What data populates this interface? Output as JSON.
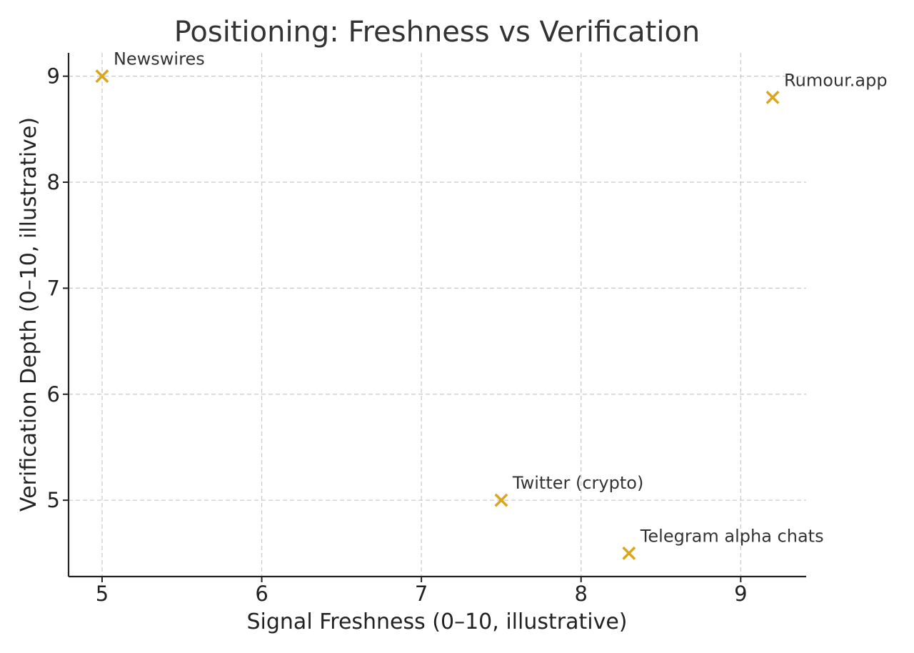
{
  "chart_data": {
    "type": "scatter",
    "title": "Positioning: Freshness vs Verification",
    "xlabel": "Signal Freshness (0–10, illustrative)",
    "ylabel": "Verification Depth (0–10, illustrative)",
    "xlim": [
      4.79,
      9.41
    ],
    "ylim": [
      4.28,
      9.22
    ],
    "xticks": [
      5,
      6,
      7,
      8,
      9
    ],
    "yticks": [
      5,
      6,
      7,
      8,
      9
    ],
    "grid": true,
    "marker": "x",
    "marker_color": "#DAA520",
    "points": [
      {
        "label": "Newswires",
        "x": 5.0,
        "y": 9.0
      },
      {
        "label": "Rumour.app",
        "x": 9.2,
        "y": 8.8
      },
      {
        "label": "Twitter (crypto)",
        "x": 7.5,
        "y": 5.0
      },
      {
        "label": "Telegram alpha chats",
        "x": 8.3,
        "y": 4.5
      }
    ]
  }
}
